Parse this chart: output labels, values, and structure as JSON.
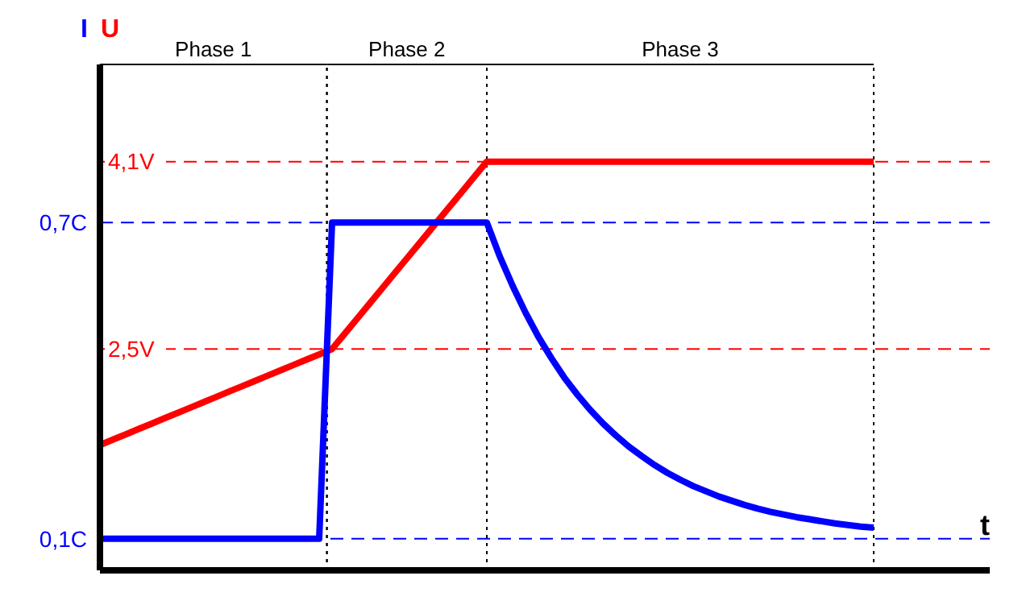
{
  "chart_data": {
    "type": "line",
    "xlabel": "t",
    "ylabel": "I",
    "y2label": "U",
    "categories": [
      null,
      null,
      null,
      null,
      null,
      null,
      null,
      null,
      null,
      null,
      null,
      null,
      null,
      null,
      null,
      null,
      null,
      null,
      null,
      null,
      null,
      null,
      null,
      null,
      null,
      null,
      null,
      null,
      null,
      null,
      null,
      null,
      null,
      null,
      null,
      null,
      null,
      null,
      null,
      null,
      null,
      null,
      null,
      null,
      null,
      null,
      null,
      null,
      null,
      null,
      null,
      null,
      null,
      null,
      null,
      null,
      null,
      null,
      null,
      null,
      null,
      null,
      null,
      null,
      null,
      null,
      null,
      null,
      null,
      null
    ],
    "ylim": [
      0.04,
      1.0
    ],
    "y2lim": [
      0.61,
      4.93
    ],
    "yticks": [
      {
        "value": 0.1,
        "label": "0,1C"
      },
      {
        "value": 0.7,
        "label": "0,7C"
      }
    ],
    "y2ticks": [
      {
        "value": 2.5,
        "label": "2,5V"
      },
      {
        "value": 4.1,
        "label": "4,1V"
      }
    ],
    "tick_labels": "y",
    "series": [
      {
        "color": "#ff0000",
        "axis": "y2",
        "values": [
          1.68,
          1.726,
          1.771,
          1.817,
          1.862,
          1.908,
          1.953,
          1.999,
          2.044,
          2.09,
          2.136,
          2.181,
          2.227,
          2.272,
          2.318,
          2.363,
          2.409,
          2.454,
          2.5,
          2.633,
          2.767,
          2.9,
          3.033,
          3.167,
          3.3,
          3.433,
          3.567,
          3.7,
          3.833,
          3.967,
          4.1,
          4.1,
          4.1,
          4.1,
          4.1,
          4.1,
          4.1,
          4.1,
          4.1,
          4.1,
          4.1,
          4.1,
          4.1,
          4.1,
          4.1,
          4.1,
          4.1,
          4.1,
          4.1,
          4.1,
          4.1,
          4.1,
          4.1,
          4.1,
          4.1,
          4.1,
          4.1,
          4.1,
          4.1,
          4.1,
          4.1,
          null,
          null,
          null,
          null,
          null,
          null,
          null,
          null,
          null
        ]
      },
      {
        "color": "#0000ff",
        "values": [
          0.1,
          0.1,
          0.1,
          0.1,
          0.1,
          0.1,
          0.1,
          0.1,
          0.1,
          0.1,
          0.1,
          0.1,
          0.1,
          0.1,
          0.1,
          0.1,
          0.1,
          0.1,
          0.7,
          0.7,
          0.7,
          0.7,
          0.7,
          0.7,
          0.7,
          0.7,
          0.7,
          0.7,
          0.7,
          0.7,
          0.7,
          0.636,
          0.58,
          0.529,
          0.483,
          0.443,
          0.406,
          0.374,
          0.345,
          0.319,
          0.296,
          0.275,
          0.257,
          0.24,
          0.225,
          0.212,
          0.2,
          0.19,
          0.18,
          0.172,
          0.164,
          0.157,
          0.151,
          0.146,
          0.141,
          0.137,
          0.133,
          0.129,
          0.126,
          0.123,
          0.121,
          null,
          null,
          null,
          null,
          null,
          null,
          null,
          null,
          null
        ]
      }
    ],
    "grid": "y",
    "annotations": [
      "Phase 1",
      "Phase 2",
      "Phase 3"
    ],
    "line_style": "solid",
    "marker": "none"
  }
}
